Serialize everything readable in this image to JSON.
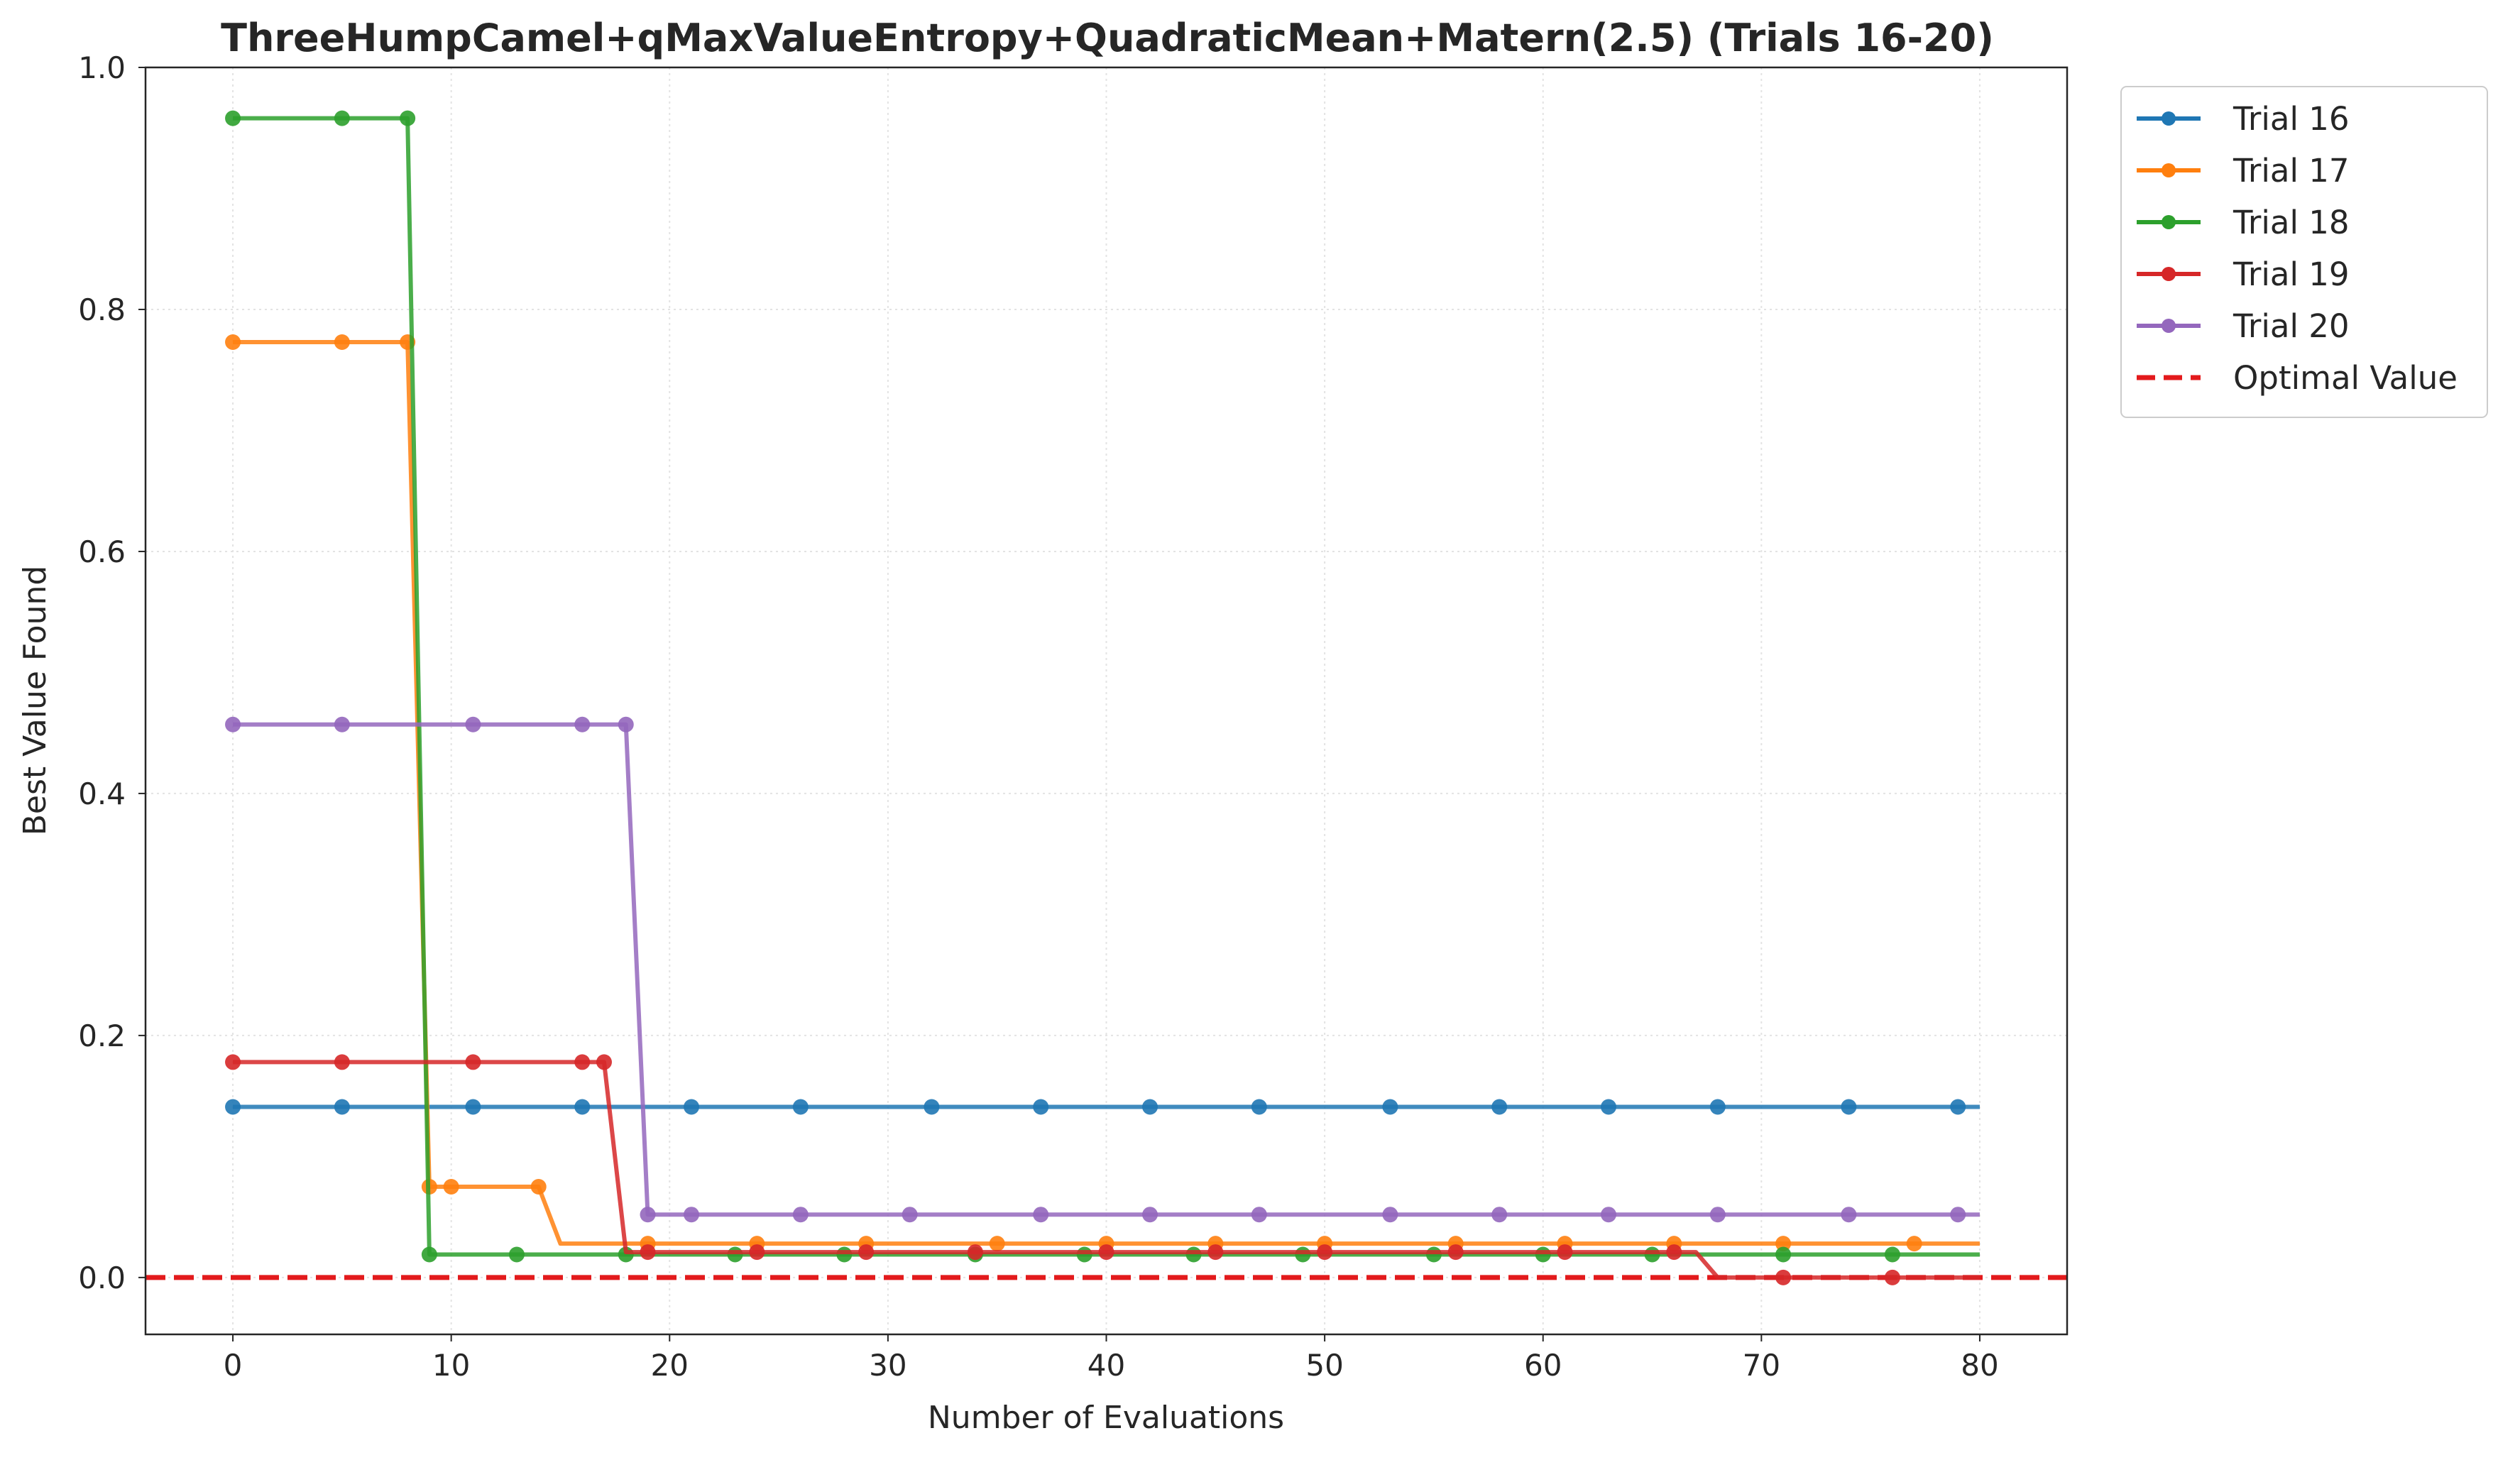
{
  "chart_data": {
    "type": "line",
    "title": "ThreeHumpCamel+qMaxValueEntropy+QuadraticMean+Matern(2.5) (Trials 16-20)",
    "xlabel": "Number of Evaluations",
    "ylabel": "Best Value Found",
    "xlim": [
      -4,
      84
    ],
    "ylim": [
      -0.047,
      1.0
    ],
    "xticks": [
      0,
      10,
      20,
      30,
      40,
      50,
      60,
      70,
      80
    ],
    "xtick_labels": [
      "0",
      "10",
      "20",
      "30",
      "40",
      "50",
      "60",
      "70",
      "80"
    ],
    "yticks": [
      0.0,
      0.2,
      0.4,
      0.6,
      0.8,
      1.0
    ],
    "ytick_labels": [
      "0.0",
      "0.2",
      "0.4",
      "0.6",
      "0.8",
      "1.0"
    ],
    "grid": true,
    "legend_position": "outside-top-right",
    "series": [
      {
        "name": "Trial 16",
        "color": "#1f77b4",
        "x": [
          0,
          80
        ],
        "y": [
          0.141,
          0.141
        ],
        "marker_x": [
          0,
          5,
          11,
          16,
          21,
          26,
          32,
          37,
          42,
          47,
          53,
          58,
          63,
          68,
          74,
          79
        ]
      },
      {
        "name": "Trial 17",
        "color": "#ff7f0e",
        "x": [
          0,
          8,
          9,
          14,
          15,
          80
        ],
        "y": [
          0.773,
          0.773,
          0.075,
          0.075,
          0.028,
          0.028
        ],
        "marker_x": [
          0,
          5,
          8,
          9,
          10,
          14,
          19,
          24,
          29,
          35,
          40,
          45,
          50,
          56,
          61,
          66,
          71,
          77
        ]
      },
      {
        "name": "Trial 18",
        "color": "#2ca02c",
        "x": [
          0,
          8,
          9,
          80
        ],
        "y": [
          0.958,
          0.958,
          0.019,
          0.019
        ],
        "marker_x": [
          0,
          5,
          8,
          9,
          13,
          18,
          23,
          28,
          34,
          39,
          44,
          49,
          55,
          60,
          65,
          71,
          76
        ]
      },
      {
        "name": "Trial 19",
        "color": "#d62728",
        "x": [
          0,
          17,
          18,
          67,
          68,
          80
        ],
        "y": [
          0.178,
          0.178,
          0.021,
          0.021,
          0.0,
          0.0
        ],
        "marker_x": [
          0,
          5,
          11,
          16,
          17,
          19,
          24,
          29,
          34,
          40,
          45,
          50,
          56,
          61,
          66,
          71,
          76
        ]
      },
      {
        "name": "Trial 20",
        "color": "#9467bd",
        "x": [
          0,
          18,
          19,
          80
        ],
        "y": [
          0.457,
          0.457,
          0.052,
          0.052
        ],
        "marker_x": [
          0,
          5,
          11,
          16,
          18,
          19,
          21,
          26,
          31,
          37,
          42,
          47,
          53,
          58,
          63,
          68,
          74,
          79
        ]
      }
    ],
    "reference_line": {
      "name": "Optimal Value",
      "y": 0.0,
      "color": "#e31a1c",
      "style": "dashed"
    }
  }
}
